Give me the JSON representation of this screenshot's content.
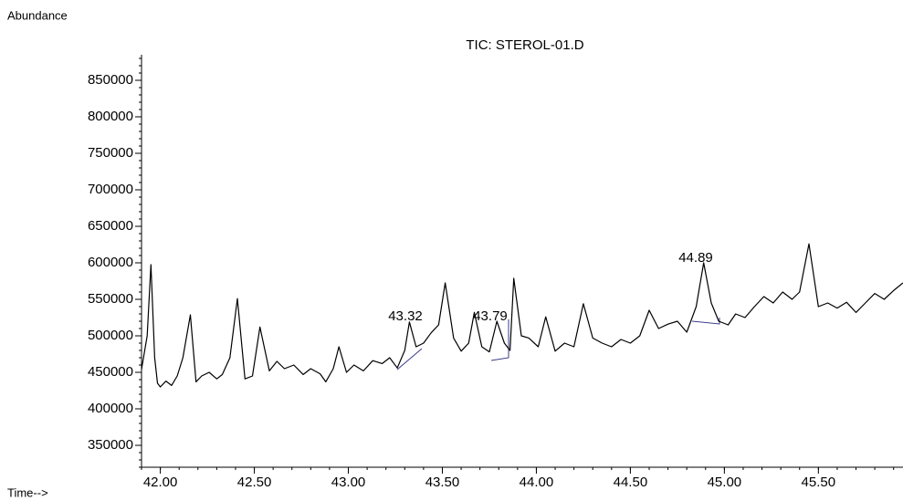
{
  "chart_data": {
    "type": "line",
    "title": "TIC: STEROL-01.D",
    "y_label": "Abundance",
    "x_label": "Time-->",
    "annotations": [
      "43.32",
      "43.79",
      "44.89"
    ],
    "xlim": [
      41.9,
      45.95
    ],
    "ylim": [
      320000,
      885000
    ],
    "xticks": [
      {
        "value": 42,
        "label": "42.00"
      },
      {
        "value": 42.5,
        "label": "42.50"
      },
      {
        "value": 43,
        "label": "43.00"
      },
      {
        "value": 43.5,
        "label": "43.50"
      },
      {
        "value": 44,
        "label": "44.00"
      },
      {
        "value": 44.5,
        "label": "44.50"
      },
      {
        "value": 45,
        "label": "45.00"
      },
      {
        "value": 45.5,
        "label": "45.50"
      }
    ],
    "yticks": [
      350000,
      400000,
      450000,
      500000,
      550000,
      600000,
      650000,
      700000,
      750000,
      800000,
      850000
    ],
    "x": [
      41.9,
      41.93,
      41.95,
      41.97,
      41.985,
      42.0,
      42.03,
      42.06,
      42.09,
      42.12,
      42.16,
      42.19,
      42.22,
      42.26,
      42.3,
      42.33,
      42.37,
      42.41,
      42.45,
      42.49,
      42.53,
      42.58,
      42.62,
      42.66,
      42.71,
      42.76,
      42.8,
      42.85,
      42.88,
      42.92,
      42.95,
      42.99,
      43.03,
      43.08,
      43.13,
      43.18,
      43.22,
      43.26,
      43.3,
      43.325,
      43.36,
      43.4,
      43.44,
      43.48,
      43.515,
      43.56,
      43.6,
      43.64,
      43.67,
      43.71,
      43.75,
      43.79,
      43.83,
      43.86,
      43.88,
      43.92,
      43.96,
      44.01,
      44.05,
      44.1,
      44.15,
      44.2,
      44.25,
      44.3,
      44.35,
      44.4,
      44.45,
      44.5,
      44.55,
      44.6,
      44.65,
      44.7,
      44.75,
      44.8,
      44.85,
      44.89,
      44.93,
      44.97,
      45.02,
      45.06,
      45.11,
      45.16,
      45.21,
      45.26,
      45.31,
      45.36,
      45.4,
      45.45,
      45.5,
      45.55,
      45.6,
      45.65,
      45.7,
      45.75,
      45.8,
      45.85,
      45.9,
      45.95
    ],
    "series": [
      {
        "name": "TIC",
        "color": "#000000",
        "values": [
          454000,
          500000,
          597500,
          470000,
          435000,
          430000,
          438000,
          432000,
          445000,
          470000,
          528750,
          437000,
          445000,
          450000,
          441000,
          447000,
          470000,
          551000,
          441000,
          445000,
          512000,
          452000,
          465000,
          455000,
          460000,
          447000,
          455000,
          448000,
          437000,
          455000,
          485000,
          450000,
          460000,
          452000,
          466000,
          462000,
          470000,
          456000,
          480000,
          519000,
          485000,
          490000,
          504000,
          515000,
          572500,
          497000,
          479000,
          490000,
          532000,
          485000,
          478000,
          520000,
          490000,
          480000,
          578750,
          500000,
          497000,
          485000,
          526000,
          479000,
          490000,
          485000,
          544000,
          497000,
          490000,
          485000,
          495000,
          490000,
          500000,
          535000,
          510000,
          516000,
          520000,
          505000,
          540000,
          600000,
          545000,
          520000,
          515000,
          530000,
          525000,
          540000,
          553750,
          545000,
          560000,
          550000,
          560000,
          626000,
          540000,
          545000,
          538000,
          546000,
          532000,
          545000,
          558000,
          550000,
          562000,
          572500
        ]
      }
    ]
  }
}
